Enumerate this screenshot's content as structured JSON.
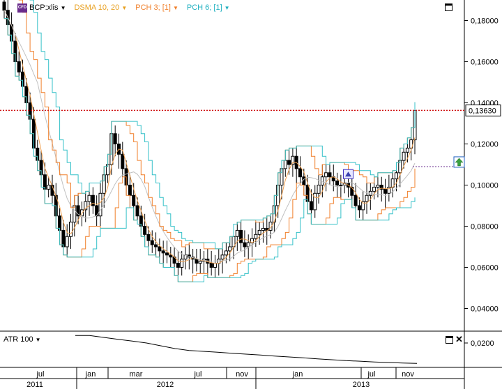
{
  "legend": {
    "symbol_badge": "CFD",
    "symbol": "BCP:xlis",
    "dsma": "DSMA 10, 20",
    "pch3": "PCH 3; [1]",
    "pch6": "PCH 6; [1]"
  },
  "indicator": {
    "label": "ATR 100",
    "axis_tick": "0,0200"
  },
  "price_axis": {
    "ticks": [
      "0,18000",
      "0,16000",
      "0,14000",
      "0,12000",
      "0,10000",
      "0,08000",
      "0,06000",
      "0,04000"
    ],
    "tick_values": [
      0.18,
      0.16,
      0.14,
      0.12,
      0.1,
      0.08,
      0.06,
      0.04
    ],
    "last_price_label": "0,13630",
    "last_price": 0.1363
  },
  "time_axis": {
    "month_labels": [
      "jul",
      "jan",
      "mar",
      "jul",
      "nov",
      "jan",
      "jul",
      "nov"
    ],
    "year_labels": [
      "2011",
      "2012",
      "2013"
    ]
  },
  "colors": {
    "candle": "#000000",
    "dsma_fast": "#f0a050",
    "dsma_slow": "#c0c0c0",
    "pch3": "#f07f2a",
    "pch6": "#33c0c8",
    "last_price_line": "#d01010",
    "dotted_level": "#6a2c8c",
    "symbol_legend": "#000000",
    "dsma_legend": "#e8a020",
    "pch3_legend": "#f07f2a",
    "pch6_legend": "#20b0c0"
  },
  "icons": {
    "collapse": "window-minimize-icon",
    "close": "close-icon",
    "alert": "triangle-alert-icon",
    "signal": "up-arrow-signal-icon"
  },
  "chart_data": {
    "type": "candlestick",
    "ylim": [
      0.03,
      0.19
    ],
    "series": [
      {
        "name": "BCP:xlis",
        "close": [
          0.185,
          0.178,
          0.17,
          0.16,
          0.155,
          0.148,
          0.14,
          0.132,
          0.118,
          0.112,
          0.105,
          0.098,
          0.1,
          0.095,
          0.085,
          0.078,
          0.07,
          0.075,
          0.082,
          0.09,
          0.085,
          0.088,
          0.092,
          0.095,
          0.09,
          0.085,
          0.096,
          0.105,
          0.11,
          0.125,
          0.12,
          0.115,
          0.108,
          0.1,
          0.095,
          0.09,
          0.085,
          0.08,
          0.076,
          0.073,
          0.071,
          0.07,
          0.068,
          0.067,
          0.066,
          0.065,
          0.062,
          0.06,
          0.064,
          0.066,
          0.065,
          0.064,
          0.062,
          0.063,
          0.064,
          0.062,
          0.06,
          0.062,
          0.064,
          0.066,
          0.068,
          0.07,
          0.075,
          0.078,
          0.072,
          0.07,
          0.072,
          0.074,
          0.076,
          0.078,
          0.079,
          0.078,
          0.082,
          0.09,
          0.1,
          0.108,
          0.112,
          0.11,
          0.114,
          0.108,
          0.104,
          0.1,
          0.092,
          0.088,
          0.096,
          0.1,
          0.104,
          0.106,
          0.104,
          0.102,
          0.1,
          0.1,
          0.101,
          0.099,
          0.095,
          0.09,
          0.088,
          0.092,
          0.095,
          0.097,
          0.099,
          0.1,
          0.098,
          0.096,
          0.099,
          0.103,
          0.106,
          0.112,
          0.116,
          0.118,
          0.122,
          0.1363
        ]
      },
      {
        "name": "ATR 100",
        "values": [
          0.024,
          0.024,
          0.023,
          0.022,
          0.021,
          0.02,
          0.0185,
          0.017,
          0.016,
          0.0155,
          0.015,
          0.0145,
          0.014,
          0.0135,
          0.013,
          0.0125,
          0.012,
          0.0115,
          0.011,
          0.0105,
          0.0102,
          0.0098,
          0.0095,
          0.0092,
          0.009
        ]
      }
    ]
  }
}
